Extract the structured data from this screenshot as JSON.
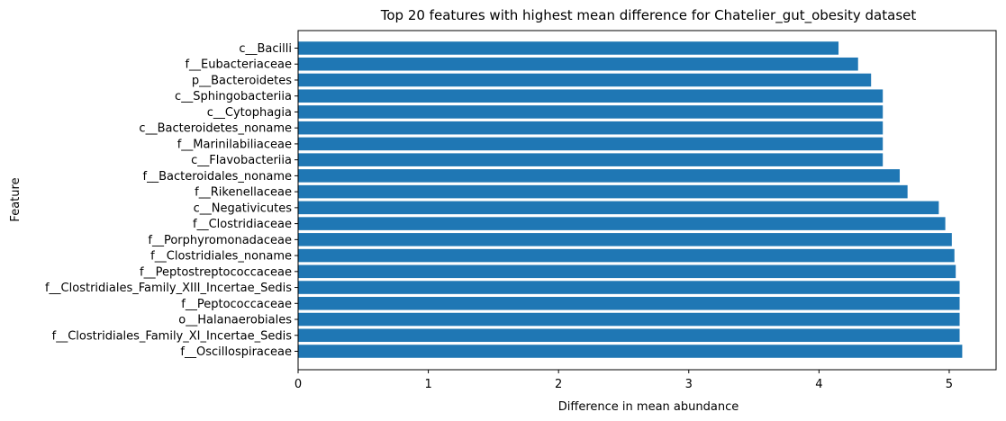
{
  "chart_data": {
    "type": "bar",
    "orientation": "horizontal",
    "title": "Top 20 features with highest mean difference for Chatelier_gut_obesity dataset",
    "xlabel": "Difference in mean abundance",
    "ylabel": "Feature",
    "xlim": [
      0,
      5.36
    ],
    "xticks": [
      0,
      1,
      2,
      3,
      4,
      5
    ],
    "grid": false,
    "bar_color": "#1f77b4",
    "categories": [
      "c__Bacilli",
      "f__Eubacteriaceae",
      "p__Bacteroidetes",
      "c__Sphingobacteriia",
      "c__Cytophagia",
      "c__Bacteroidetes_noname",
      "f__Marinilabiliaceae",
      "c__Flavobacteriia",
      "f__Bacteroidales_noname",
      "f__Rikenellaceae",
      "c__Negativicutes",
      "f__Clostridiaceae",
      "f__Porphyromonadaceae",
      "f__Clostridiales_noname",
      "f__Peptostreptococcaceae",
      "f__Clostridiales_Family_XIII_Incertae_Sedis",
      "f__Peptococcaceae",
      "o__Halanaerobiales",
      "f__Clostridiales_Family_XI_Incertae_Sedis",
      "f__Oscillospiraceae"
    ],
    "values": [
      4.15,
      4.3,
      4.4,
      4.49,
      4.49,
      4.49,
      4.49,
      4.49,
      4.62,
      4.68,
      4.92,
      4.97,
      5.02,
      5.04,
      5.05,
      5.08,
      5.08,
      5.08,
      5.08,
      5.1
    ]
  }
}
